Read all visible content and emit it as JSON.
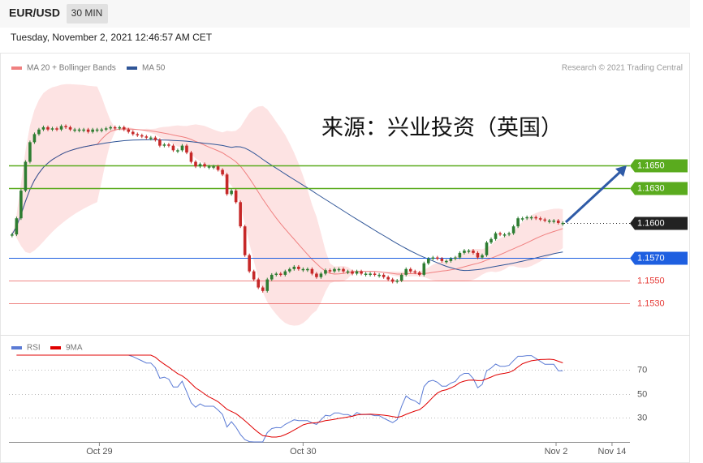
{
  "header": {
    "symbol": "EUR/USD",
    "timeframe": "30 MIN",
    "datetime": "Tuesday, November 2, 2021 12:46:57 AM CET",
    "credit": "Research © 2021 Trading Central"
  },
  "annotation": "来源：兴业投资（英国）",
  "chart_data": [
    {
      "type": "candlestick",
      "legend": [
        {
          "name": "MA 20 + Bollinger Bands",
          "color": "#f08080"
        },
        {
          "name": "MA 50",
          "color": "#2f5597"
        }
      ],
      "up_color": "#2e7d32",
      "down_color": "#c62828",
      "close": [
        1.159,
        1.1604,
        1.1628,
        1.1653,
        1.167,
        1.1677,
        1.1681,
        1.1683,
        1.1681,
        1.1682,
        1.1681,
        1.1684,
        1.1683,
        1.1681,
        1.1681,
        1.1681,
        1.1681,
        1.1679,
        1.1681,
        1.1681,
        1.1681,
        1.1682,
        1.1683,
        1.1682,
        1.1683,
        1.1681,
        1.1679,
        1.1677,
        1.1676,
        1.1675,
        1.1674,
        1.1674,
        1.1672,
        1.1667,
        1.1668,
        1.1667,
        1.1663,
        1.1663,
        1.1667,
        1.1661,
        1.1653,
        1.1649,
        1.1651,
        1.1649,
        1.1649,
        1.1649,
        1.1646,
        1.1642,
        1.1625,
        1.1628,
        1.1618,
        1.1597,
        1.1572,
        1.1558,
        1.1551,
        1.1544,
        1.1541,
        1.1551,
        1.1555,
        1.1556,
        1.1555,
        1.1558,
        1.156,
        1.1562,
        1.156,
        1.156,
        1.156,
        1.1556,
        1.1553,
        1.1556,
        1.1559,
        1.1558,
        1.156,
        1.156,
        1.1558,
        1.1558,
        1.1556,
        1.1558,
        1.1556,
        1.1556,
        1.1556,
        1.1555,
        1.1555,
        1.1553,
        1.1551,
        1.1549,
        1.155,
        1.1555,
        1.156,
        1.1558,
        1.1557,
        1.1555,
        1.1565,
        1.1569,
        1.157,
        1.1569,
        1.1567,
        1.1567,
        1.1569,
        1.157,
        1.1574,
        1.1576,
        1.1576,
        1.1574,
        1.157,
        1.1572,
        1.1583,
        1.1586,
        1.1591,
        1.159,
        1.159,
        1.1591,
        1.1597,
        1.1604,
        1.1604,
        1.1605,
        1.1605,
        1.1604,
        1.1603,
        1.1602,
        1.1602,
        1.1602,
        1.16,
        1.16
      ],
      "xlim": [
        -0.7,
        138
      ],
      "ylim": [
        1.1505,
        1.1723
      ],
      "levels": [
        {
          "value": 1.165,
          "label": "1.1650",
          "color": "#5aab1e",
          "style": "box"
        },
        {
          "value": 1.163,
          "label": "1.1630",
          "color": "#5aab1e",
          "style": "box"
        },
        {
          "value": 1.16,
          "label": "1.1600",
          "color": "#222222",
          "style": "dotted-box"
        },
        {
          "value": 1.157,
          "label": "1.1570",
          "color": "#1e5fe0",
          "style": "box"
        },
        {
          "value": 1.155,
          "label": "1.1550",
          "color": "#e53935",
          "style": "text"
        },
        {
          "value": 1.153,
          "label": "1.1530",
          "color": "#e53935",
          "style": "text"
        }
      ]
    },
    {
      "type": "rsi",
      "series": [
        {
          "name": "RSI",
          "color": "#5b7bd5"
        },
        {
          "name": "9MA",
          "color": "#e00000"
        }
      ],
      "ylim": [
        10,
        82
      ],
      "yticks": [
        30,
        50,
        70
      ],
      "xticks": [
        {
          "value": 19.5,
          "label": "Oct 29"
        },
        {
          "value": 65,
          "label": "Oct 30"
        },
        {
          "value": 121.5,
          "label": "Nov 2"
        },
        {
          "value": 134,
          "label": "Nov 14"
        }
      ]
    }
  ]
}
